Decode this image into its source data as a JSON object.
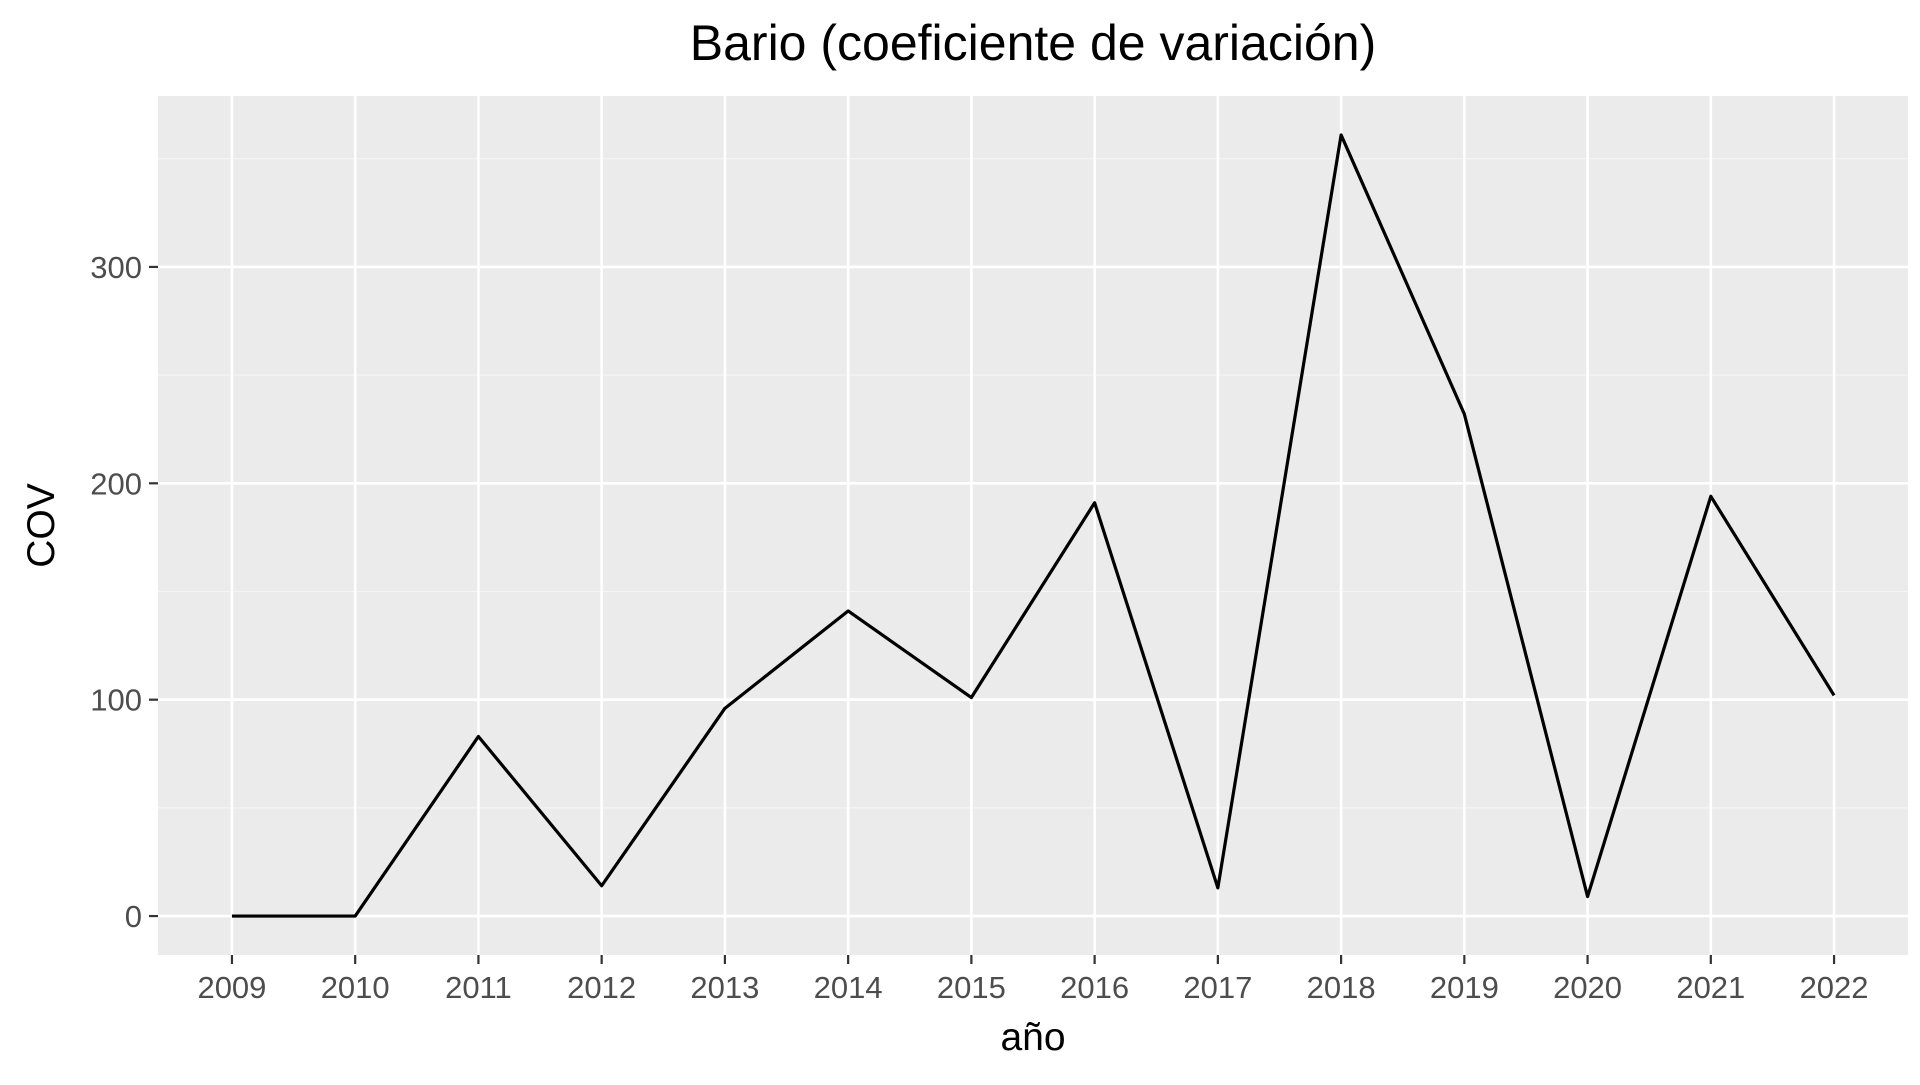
{
  "chart_data": {
    "type": "line",
    "title": "Bario (coeficiente de variación)",
    "xlabel": "año",
    "ylabel": "COV",
    "x": [
      2009,
      2010,
      2011,
      2012,
      2013,
      2014,
      2015,
      2016,
      2017,
      2018,
      2019,
      2020,
      2021,
      2022
    ],
    "x_tick_labels": [
      "2009",
      "2010",
      "2011",
      "2012",
      "2013",
      "2014",
      "2015",
      "2016",
      "2017",
      "2018",
      "2019",
      "2020",
      "2021",
      "2022"
    ],
    "y_ticks": [
      0,
      100,
      200,
      300
    ],
    "y_tick_labels": [
      "0",
      "100",
      "200",
      "300"
    ],
    "series": [
      {
        "values": [
          0,
          0,
          83,
          14,
          96,
          141,
          101,
          191,
          13,
          361,
          232,
          9,
          194,
          102
        ]
      }
    ],
    "xlim": [
      2008.4,
      2022.6
    ],
    "ylim": [
      -18,
      379
    ],
    "grid": true,
    "theme": "gray",
    "colors": {
      "panel_background": "#EBEBEB",
      "grid_major": "#FFFFFF",
      "grid_minor": "#F5F5F5",
      "line": "#000000",
      "tick_text": "#4D4D4D",
      "tick_mark": "#333333",
      "title_text": "#000000"
    }
  }
}
